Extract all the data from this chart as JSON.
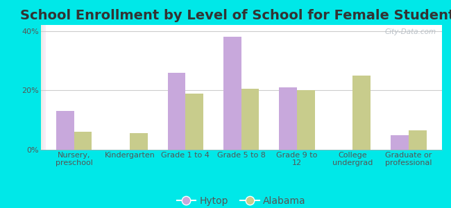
{
  "title": "School Enrollment by Level of School for Female Students",
  "categories": [
    "Nursery,\npreschool",
    "Kindergarten",
    "Grade 1 to 4",
    "Grade 5 to 8",
    "Grade 9 to\n12",
    "College\nundergrad",
    "Graduate or\nprofessional"
  ],
  "hytop": [
    13.0,
    0.0,
    26.0,
    38.0,
    21.0,
    0.0,
    5.0
  ],
  "alabama": [
    6.0,
    5.5,
    19.0,
    20.5,
    20.0,
    25.0,
    6.5
  ],
  "hytop_color": "#c8a8dc",
  "alabama_color": "#c8cc8c",
  "bg_color": "#00e8e8",
  "ylim": [
    0,
    42
  ],
  "yticks": [
    0,
    20,
    40
  ],
  "ytick_labels": [
    "0%",
    "20%",
    "40%"
  ],
  "watermark": "City-Data.com",
  "title_fontsize": 14,
  "legend_fontsize": 10,
  "tick_fontsize": 8,
  "bar_width": 0.32
}
